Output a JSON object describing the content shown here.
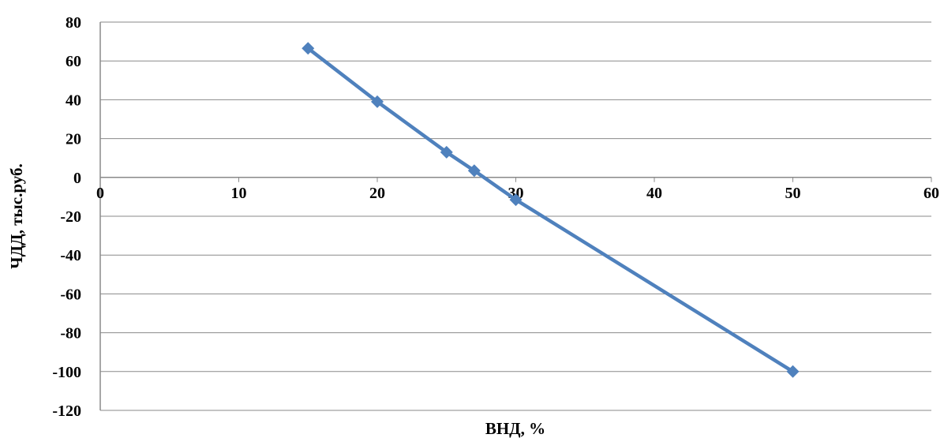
{
  "chart_data": {
    "type": "line",
    "title": "",
    "xlabel": "ВНД, %",
    "ylabel": "ЧДД, тыс.руб.",
    "xlim": [
      0,
      60
    ],
    "ylim": [
      -120,
      80
    ],
    "x_ticks": [
      "0",
      "10",
      "20",
      "30",
      "40",
      "50",
      "60"
    ],
    "y_ticks": [
      "80",
      "60",
      "40",
      "20",
      "0",
      "-20",
      "-40",
      "-60",
      "-80",
      "-100",
      "-120"
    ],
    "grid": true,
    "legend": "none",
    "series": [
      {
        "x": [
          15,
          20,
          25,
          27,
          30,
          50
        ],
        "values": [
          66.5,
          39,
          13,
          3.5,
          -11.5,
          -100
        ],
        "color": "#4F81BD",
        "marker": "diamond"
      }
    ]
  }
}
